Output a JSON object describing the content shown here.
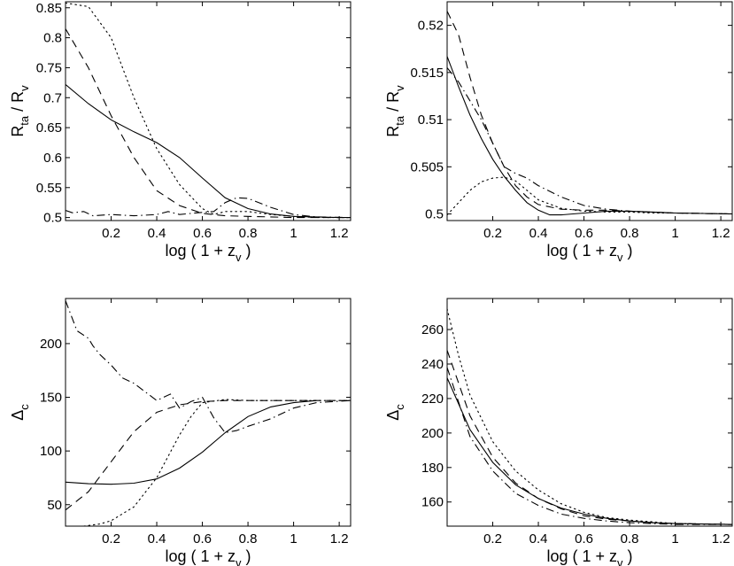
{
  "chart_data": [
    {
      "type": "line",
      "panel": "top-left",
      "xlim": [
        0,
        1.25
      ],
      "ylim": [
        0.495,
        0.86
      ],
      "xticks": [
        {
          "v": 0.2,
          "label": "0.2"
        },
        {
          "v": 0.4,
          "label": "0.4"
        },
        {
          "v": 0.6,
          "label": "0.6"
        },
        {
          "v": 0.8,
          "label": "0.8"
        },
        {
          "v": 1.0,
          "label": "1"
        },
        {
          "v": 1.2,
          "label": "1.2"
        }
      ],
      "yticks": [
        {
          "v": 0.5,
          "label": "0.5"
        },
        {
          "v": 0.55,
          "label": "0.55"
        },
        {
          "v": 0.6,
          "label": "0.6"
        },
        {
          "v": 0.65,
          "label": "0.65"
        },
        {
          "v": 0.7,
          "label": "0.7"
        },
        {
          "v": 0.75,
          "label": "0.75"
        },
        {
          "v": 0.8,
          "label": "0.8"
        },
        {
          "v": 0.85,
          "label": "0.85"
        }
      ],
      "xlabel": {
        "main": "log ( 1 + z",
        "sub": "v",
        "close": " )"
      },
      "ylabel": {
        "a": "R",
        "a_sub": "ta",
        "mid": " / R",
        "b_sub": "v"
      },
      "series": [
        {
          "style": "solid",
          "x": [
            0,
            0.1,
            0.2,
            0.3,
            0.4,
            0.5,
            0.6,
            0.7,
            0.8,
            0.9,
            1.0,
            1.1,
            1.2,
            1.25
          ],
          "y": [
            0.722,
            0.69,
            0.663,
            0.643,
            0.625,
            0.6,
            0.566,
            0.533,
            0.515,
            0.506,
            0.502,
            0.501,
            0.5,
            0.5
          ]
        },
        {
          "style": "dashed",
          "x": [
            0,
            0.1,
            0.2,
            0.3,
            0.4,
            0.5,
            0.6,
            0.7,
            0.8,
            0.9,
            1.0,
            1.1,
            1.25
          ],
          "y": [
            0.815,
            0.75,
            0.67,
            0.6,
            0.545,
            0.52,
            0.507,
            0.503,
            0.502,
            0.501,
            0.5,
            0.5,
            0.5
          ]
        },
        {
          "style": "dotted",
          "x": [
            0,
            0.1,
            0.2,
            0.3,
            0.4,
            0.5,
            0.6,
            0.65,
            0.7,
            0.8,
            0.9,
            1.0,
            1.1,
            1.25
          ],
          "y": [
            0.858,
            0.852,
            0.8,
            0.7,
            0.615,
            0.555,
            0.515,
            0.505,
            0.51,
            0.51,
            0.505,
            0.502,
            0.5,
            0.5
          ]
        },
        {
          "style": "dashdot",
          "x": [
            0,
            0.03,
            0.08,
            0.12,
            0.2,
            0.3,
            0.4,
            0.45,
            0.5,
            0.58,
            0.65,
            0.7,
            0.75,
            0.8,
            0.9,
            1.0,
            1.1,
            1.25
          ],
          "y": [
            0.512,
            0.508,
            0.51,
            0.503,
            0.505,
            0.503,
            0.505,
            0.51,
            0.505,
            0.508,
            0.51,
            0.525,
            0.533,
            0.532,
            0.517,
            0.505,
            0.501,
            0.5
          ]
        }
      ]
    },
    {
      "type": "line",
      "panel": "top-right",
      "xlim": [
        0,
        1.25
      ],
      "ylim": [
        0.4993,
        0.5225
      ],
      "xticks": [
        {
          "v": 0.2,
          "label": "0.2"
        },
        {
          "v": 0.4,
          "label": "0.4"
        },
        {
          "v": 0.6,
          "label": "0.6"
        },
        {
          "v": 0.8,
          "label": "0.8"
        },
        {
          "v": 1.0,
          "label": "1"
        },
        {
          "v": 1.2,
          "label": "1.2"
        }
      ],
      "yticks": [
        {
          "v": 0.5,
          "label": "0.5"
        },
        {
          "v": 0.505,
          "label": "0.505"
        },
        {
          "v": 0.51,
          "label": "0.51"
        },
        {
          "v": 0.515,
          "label": "0.515"
        },
        {
          "v": 0.52,
          "label": "0.52"
        }
      ],
      "xlabel": {
        "main": "log ( 1 + z",
        "sub": "v",
        "close": " )"
      },
      "ylabel": {
        "a": "R",
        "a_sub": "ta",
        "mid": " / R",
        "b_sub": "v"
      },
      "series": [
        {
          "style": "solid",
          "x": [
            0,
            0.05,
            0.1,
            0.15,
            0.2,
            0.25,
            0.3,
            0.35,
            0.4,
            0.45,
            0.5,
            0.6,
            0.7,
            0.8,
            0.9,
            1.0,
            1.25
          ],
          "y": [
            0.5167,
            0.5135,
            0.5105,
            0.508,
            0.5058,
            0.504,
            0.5025,
            0.5012,
            0.5004,
            0.4999,
            0.4999,
            0.5001,
            0.5003,
            0.5003,
            0.5002,
            0.5001,
            0.5
          ]
        },
        {
          "style": "dashed",
          "x": [
            0,
            0.05,
            0.1,
            0.15,
            0.2,
            0.25,
            0.3,
            0.35,
            0.4,
            0.5,
            0.6,
            0.7,
            0.8,
            0.9,
            1.0,
            1.25
          ],
          "y": [
            0.5215,
            0.519,
            0.5145,
            0.5105,
            0.5075,
            0.505,
            0.503,
            0.5018,
            0.501,
            0.5005,
            0.5004,
            0.5004,
            0.5003,
            0.5002,
            0.5001,
            0.5
          ]
        },
        {
          "style": "dotted",
          "x": [
            0,
            0.05,
            0.1,
            0.15,
            0.2,
            0.25,
            0.3,
            0.35,
            0.4,
            0.5,
            0.6,
            0.7,
            0.8,
            0.9,
            1.0,
            1.25
          ],
          "y": [
            0.4999,
            0.5012,
            0.5025,
            0.5034,
            0.5038,
            0.5039,
            0.5035,
            0.5025,
            0.5015,
            0.5006,
            0.5003,
            0.5002,
            0.5002,
            0.5001,
            0.5001,
            0.5
          ]
        },
        {
          "style": "dashdot",
          "x": [
            0,
            0.05,
            0.1,
            0.15,
            0.2,
            0.25,
            0.3,
            0.35,
            0.4,
            0.5,
            0.6,
            0.7,
            0.8,
            0.9,
            1.0,
            1.25
          ],
          "y": [
            0.5155,
            0.514,
            0.512,
            0.51,
            0.5075,
            0.505,
            0.5043,
            0.5038,
            0.503,
            0.5018,
            0.5009,
            0.5005,
            0.5003,
            0.5002,
            0.5001,
            0.5
          ]
        }
      ]
    },
    {
      "type": "line",
      "panel": "bottom-left",
      "xlim": [
        0,
        1.25
      ],
      "ylim": [
        30,
        242
      ],
      "xticks": [
        {
          "v": 0.2,
          "label": "0.2"
        },
        {
          "v": 0.4,
          "label": "0.4"
        },
        {
          "v": 0.6,
          "label": "0.6"
        },
        {
          "v": 0.8,
          "label": "0.8"
        },
        {
          "v": 1.0,
          "label": "1"
        },
        {
          "v": 1.2,
          "label": "1.2"
        }
      ],
      "yticks": [
        {
          "v": 50,
          "label": "50"
        },
        {
          "v": 100,
          "label": "100"
        },
        {
          "v": 150,
          "label": "150"
        },
        {
          "v": 200,
          "label": "200"
        }
      ],
      "xlabel": {
        "main": "log ( 1 + z",
        "sub": "v",
        "close": " )"
      },
      "ylabel": {
        "a": "Δ",
        "a_sub": "c"
      },
      "series": [
        {
          "style": "solid",
          "x": [
            0,
            0.1,
            0.2,
            0.3,
            0.4,
            0.5,
            0.6,
            0.7,
            0.8,
            0.9,
            1.0,
            1.1
          ],
          "y": [
            71,
            69.5,
            69,
            70,
            74,
            84,
            99,
            117,
            132,
            141,
            145,
            147
          ]
        },
        {
          "style": "dashed",
          "x": [
            0,
            0.1,
            0.2,
            0.3,
            0.4,
            0.5,
            0.6,
            0.7,
            0.8,
            0.9,
            1.0,
            1.1,
            1.25
          ],
          "y": [
            45,
            62,
            90,
            118,
            136,
            143,
            146,
            147,
            147,
            147,
            147,
            147,
            147
          ]
        },
        {
          "style": "dotted",
          "x": [
            0.08,
            0.15,
            0.2,
            0.3,
            0.4,
            0.45,
            0.5,
            0.55,
            0.6,
            0.7,
            0.8,
            0.9,
            1.0,
            1.25
          ],
          "y": [
            30,
            32,
            35,
            48,
            75,
            95,
            115,
            132,
            145,
            148,
            147,
            147,
            147,
            147
          ]
        },
        {
          "style": "dashdot",
          "x": [
            0,
            0.05,
            0.1,
            0.12,
            0.15,
            0.2,
            0.25,
            0.3,
            0.35,
            0.4,
            0.43,
            0.46,
            0.5,
            0.55,
            0.6,
            0.65,
            0.7,
            0.75,
            0.8,
            0.9,
            1.0,
            1.1,
            1.25
          ],
          "y": [
            240,
            212,
            205,
            198,
            190,
            180,
            168,
            163,
            155,
            147,
            150,
            153,
            140,
            146,
            150,
            131,
            117,
            119,
            123,
            130,
            140,
            145,
            147
          ]
        }
      ]
    },
    {
      "type": "line",
      "panel": "bottom-right",
      "xlim": [
        0,
        1.25
      ],
      "ylim": [
        146,
        278
      ],
      "xticks": [
        {
          "v": 0.2,
          "label": "0.2"
        },
        {
          "v": 0.4,
          "label": "0.4"
        },
        {
          "v": 0.6,
          "label": "0.6"
        },
        {
          "v": 0.8,
          "label": "0.8"
        },
        {
          "v": 1.0,
          "label": "1"
        },
        {
          "v": 1.2,
          "label": "1.2"
        }
      ],
      "yticks": [
        {
          "v": 160,
          "label": "160"
        },
        {
          "v": 180,
          "label": "180"
        },
        {
          "v": 200,
          "label": "200"
        },
        {
          "v": 220,
          "label": "220"
        },
        {
          "v": 240,
          "label": "240"
        },
        {
          "v": 260,
          "label": "260"
        }
      ],
      "xlabel": {
        "main": "log ( 1 + z",
        "sub": "v",
        "close": " )"
      },
      "ylabel": {
        "a": "Δ",
        "a_sub": "c"
      },
      "series": [
        {
          "style": "solid",
          "x": [
            0,
            0.1,
            0.2,
            0.3,
            0.4,
            0.5,
            0.6,
            0.7,
            0.8,
            0.9,
            1.0,
            1.25
          ],
          "y": [
            232,
            202,
            183,
            170,
            162,
            156.5,
            153,
            150.5,
            149,
            148,
            147.5,
            147
          ]
        },
        {
          "style": "dashed",
          "x": [
            0,
            0.1,
            0.2,
            0.3,
            0.4,
            0.5,
            0.6,
            0.7,
            0.8,
            0.9,
            1.0,
            1.25
          ],
          "y": [
            248,
            210,
            186,
            171,
            162,
            156,
            152,
            150,
            149,
            148,
            147.5,
            147
          ]
        },
        {
          "style": "dotted",
          "x": [
            0,
            0.05,
            0.1,
            0.2,
            0.3,
            0.4,
            0.5,
            0.6,
            0.7,
            0.8,
            0.9,
            1.0,
            1.25
          ],
          "y": [
            272,
            245,
            222,
            195,
            178,
            167,
            159,
            154,
            151,
            149.5,
            148.5,
            147.5,
            147
          ]
        },
        {
          "style": "dashdot",
          "x": [
            0,
            0.1,
            0.2,
            0.3,
            0.4,
            0.5,
            0.6,
            0.7,
            0.8,
            0.9,
            1.0,
            1.25
          ],
          "y": [
            238,
            198,
            178,
            165,
            158,
            153,
            150.5,
            149,
            148,
            147.5,
            147,
            147
          ]
        }
      ]
    }
  ]
}
